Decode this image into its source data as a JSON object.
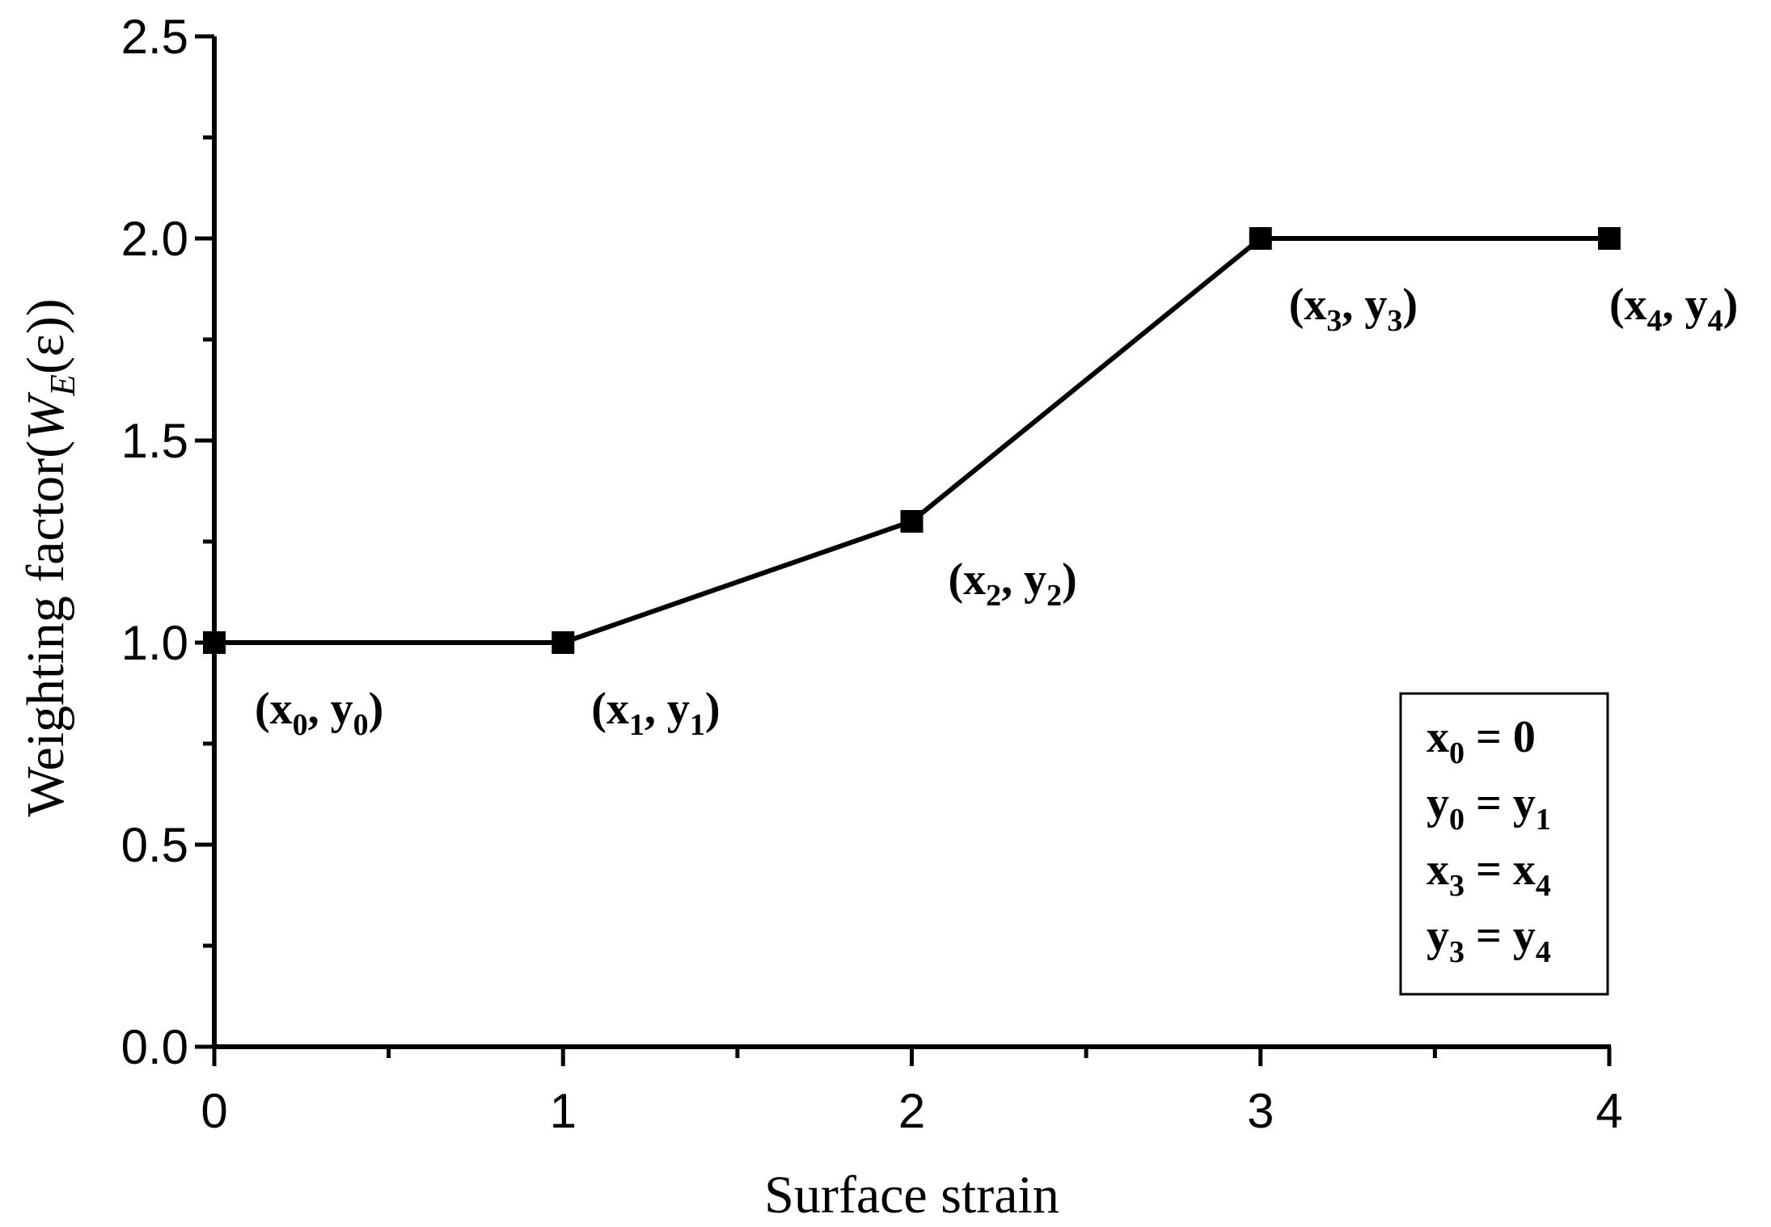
{
  "chart_data": {
    "type": "line",
    "title": "",
    "xlabel": "Surface strain",
    "ylabel": {
      "prefix": "Weighting factor(",
      "main": "W",
      "sub": "E",
      "rest": "(ε))"
    },
    "xlim": [
      0,
      4
    ],
    "ylim": [
      0,
      2.5
    ],
    "xticks": [
      "0",
      "1",
      "2",
      "3",
      "4"
    ],
    "yticks": [
      "0.0",
      "0.5",
      "1.0",
      "1.5",
      "2.0",
      "2.5"
    ],
    "grid": false,
    "series": [
      {
        "x": [
          0,
          1,
          2,
          3,
          4
        ],
        "y": [
          1.0,
          1.0,
          1.3,
          2.0,
          2.0
        ],
        "color": "#000000",
        "marker": "square"
      }
    ],
    "point_labels": [
      {
        "a": "x",
        "i": "0",
        "b": "y",
        "j": "0"
      },
      {
        "a": "x",
        "i": "1",
        "b": "y",
        "j": "1"
      },
      {
        "a": "x",
        "i": "2",
        "b": "y",
        "j": "2"
      },
      {
        "a": "x",
        "i": "3",
        "b": "y",
        "j": "3"
      },
      {
        "a": "x",
        "i": "4",
        "b": "y",
        "j": "4"
      }
    ],
    "legend_box": [
      {
        "a": "x",
        "i": "0",
        "rel": " = ",
        "b": "0",
        "j": ""
      },
      {
        "a": "y",
        "i": "0",
        "rel": " = ",
        "b": "y",
        "j": "1"
      },
      {
        "a": "x",
        "i": "3",
        "rel": " = ",
        "b": "x",
        "j": "4"
      },
      {
        "a": "y",
        "i": "3",
        "rel": " = ",
        "b": "y",
        "j": "4"
      }
    ]
  }
}
